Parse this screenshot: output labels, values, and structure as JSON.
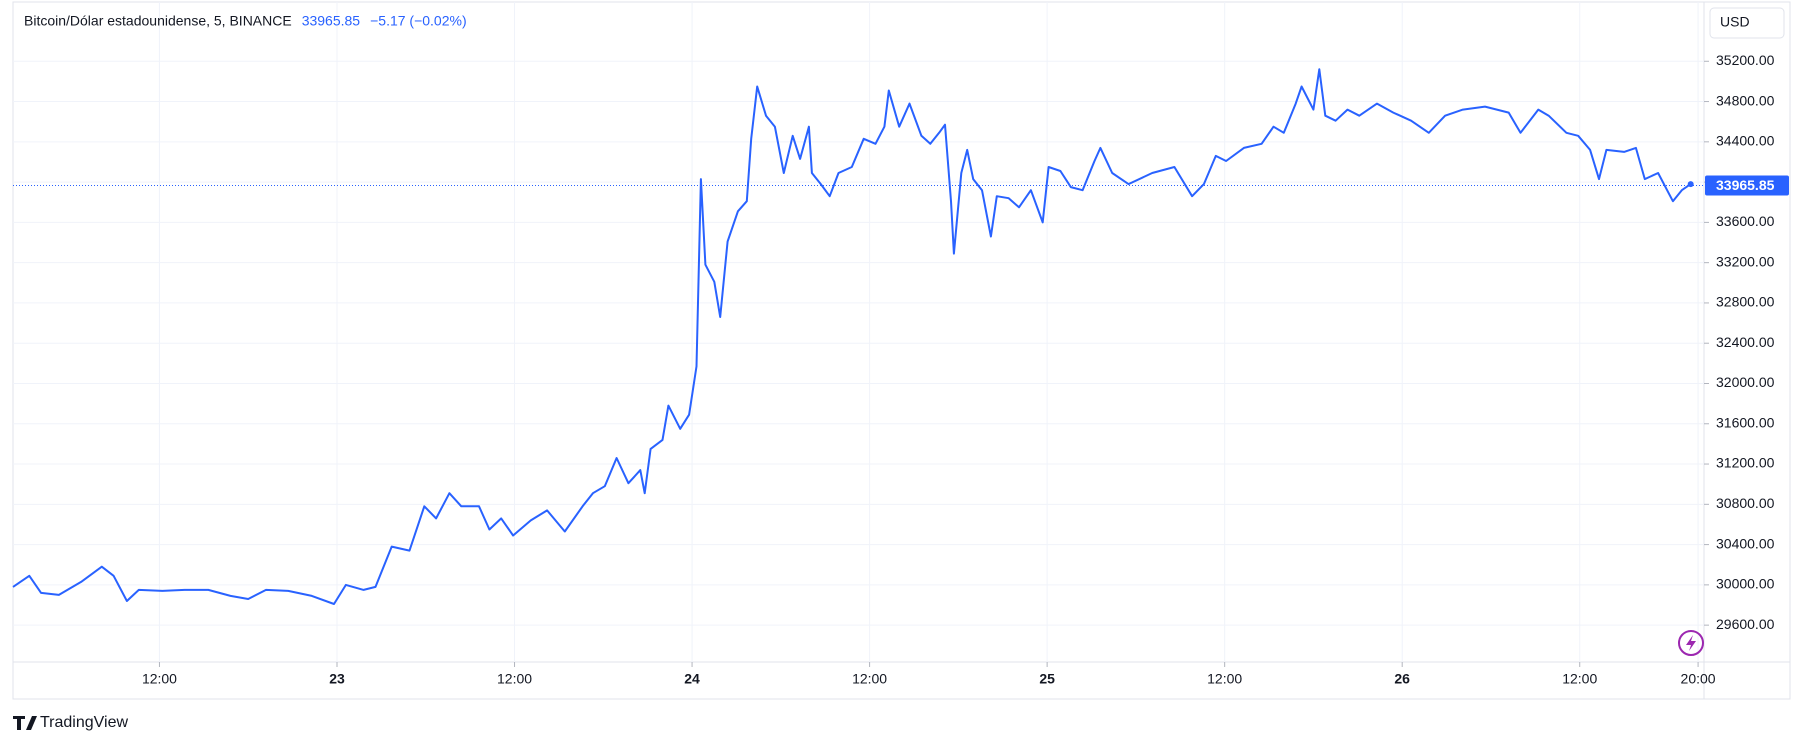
{
  "chart_data": {
    "type": "line",
    "title": "Bitcoin/Dólar estadounidense, 5, BINANCE",
    "last_price": 33965.85,
    "change": "−5.17 (−0.02%)",
    "currency": "USD",
    "brand": "TradingView",
    "color": "#2962ff",
    "grid": true,
    "x": [
      2.1,
      3.2,
      4.0,
      5.2,
      6.7,
      8.1,
      8.9,
      9.8,
      10.6,
      12.2,
      13.7,
      15.3,
      16.8,
      18.0,
      19.2,
      20.7,
      22.3,
      23.8,
      24.6,
      25.8,
      26.6,
      27.7,
      28.9,
      29.9,
      30.7,
      31.6,
      32.4,
      33.6,
      34.3,
      35.1,
      35.9,
      37.1,
      38.2,
      39.4,
      40.6,
      41.3,
      42.1,
      42.9,
      43.7,
      44.5,
      44.8,
      45.2,
      46.0,
      46.4,
      47.2,
      47.8,
      48.3,
      48.6,
      48.9,
      49.5,
      49.9,
      50.4,
      51.1,
      51.7,
      52.0,
      52.4,
      53.0,
      53.6,
      54.2,
      54.8,
      55.3,
      55.9,
      56.1,
      56.7,
      57.3,
      57.9,
      58.8,
      59.6,
      60.4,
      61.0,
      61.3,
      62.0,
      62.7,
      63.5,
      64.1,
      64.7,
      65.1,
      65.5,
      65.7,
      66.2,
      66.6,
      67.0,
      67.6,
      68.2,
      68.6,
      69.4,
      70.1,
      70.9,
      71.7,
      72.1,
      72.9,
      73.6,
      74.4,
      75.2,
      75.6,
      76.4,
      77.5,
      79.1,
      80.6,
      81.8,
      82.6,
      83.4,
      84.1,
      85.3,
      86.5,
      87.3,
      88.0,
      88.8,
      89.2,
      90.0,
      90.4,
      90.8,
      91.5,
      92.3,
      93.1,
      94.3,
      95.4,
      96.6,
      97.8,
      98.9,
      100.1,
      101.6,
      103.2,
      104.0,
      105.2,
      105.9,
      107.1,
      107.9,
      108.7,
      109.3,
      109.8,
      111.0,
      111.8,
      112.4,
      113.3,
      114.3,
      114.9,
      115.5
    ],
    "values": [
      29980,
      30090,
      29920,
      29900,
      30030,
      30180,
      30090,
      29840,
      29950,
      29940,
      29950,
      29950,
      29890,
      29860,
      29950,
      29940,
      29890,
      29810,
      30000,
      29950,
      29980,
      30380,
      30340,
      30780,
      30660,
      30910,
      30780,
      30780,
      30550,
      30660,
      30490,
      30640,
      30740,
      30530,
      30780,
      30910,
      30980,
      31260,
      31010,
      31140,
      30910,
      31350,
      31440,
      31780,
      31550,
      31690,
      32170,
      34030,
      33180,
      33010,
      32660,
      33410,
      33710,
      33810,
      34430,
      34950,
      34660,
      34550,
      34090,
      34460,
      34230,
      34550,
      34090,
      33980,
      33860,
      34090,
      34150,
      34430,
      34380,
      34550,
      34910,
      34550,
      34780,
      34460,
      34380,
      34490,
      34570,
      33810,
      33290,
      34090,
      34320,
      34030,
      33920,
      33460,
      33860,
      33840,
      33750,
      33920,
      33600,
      34150,
      34110,
      33950,
      33920,
      34210,
      34340,
      34090,
      33980,
      34090,
      34150,
      33860,
      33980,
      34260,
      34210,
      34340,
      34380,
      34550,
      34490,
      34780,
      34950,
      34720,
      35120,
      34660,
      34610,
      34720,
      34660,
      34780,
      34690,
      34610,
      34490,
      34660,
      34720,
      34750,
      34690,
      34490,
      34720,
      34660,
      34490,
      34460,
      34320,
      34030,
      34320,
      34300,
      34340,
      34030,
      34090,
      33810,
      33920,
      33980
    ],
    "xlim": [
      2.1,
      116.4
    ],
    "ylim": [
      29234,
      35749
    ],
    "xticks": [
      {
        "value": 12,
        "label": "12:00"
      },
      {
        "value": 24,
        "label": "23"
      },
      {
        "value": 36,
        "label": "12:00"
      },
      {
        "value": 48,
        "label": "24"
      },
      {
        "value": 60,
        "label": "12:00"
      },
      {
        "value": 72,
        "label": "25"
      },
      {
        "value": 84,
        "label": "12:00"
      },
      {
        "value": 96,
        "label": "26"
      },
      {
        "value": 108,
        "label": "12:00"
      },
      {
        "value": 116,
        "label": "20:00"
      }
    ],
    "yticks": [
      {
        "value": 29600,
        "label": "29600.00"
      },
      {
        "value": 30000,
        "label": "30000.00"
      },
      {
        "value": 30400,
        "label": "30400.00"
      },
      {
        "value": 30800,
        "label": "30800.00"
      },
      {
        "value": 31200,
        "label": "31200.00"
      },
      {
        "value": 31600,
        "label": "31600.00"
      },
      {
        "value": 32000,
        "label": "32000.00"
      },
      {
        "value": 32400,
        "label": "32400.00"
      },
      {
        "value": 32800,
        "label": "32800.00"
      },
      {
        "value": 33200,
        "label": "33200.00"
      },
      {
        "value": 33600,
        "label": "33600.00"
      },
      {
        "value": 34000,
        "label": "34000.00"
      },
      {
        "value": 34400,
        "label": "34400.00"
      },
      {
        "value": 34800,
        "label": "34800.00"
      },
      {
        "value": 35200,
        "label": "35200.00"
      }
    ]
  }
}
